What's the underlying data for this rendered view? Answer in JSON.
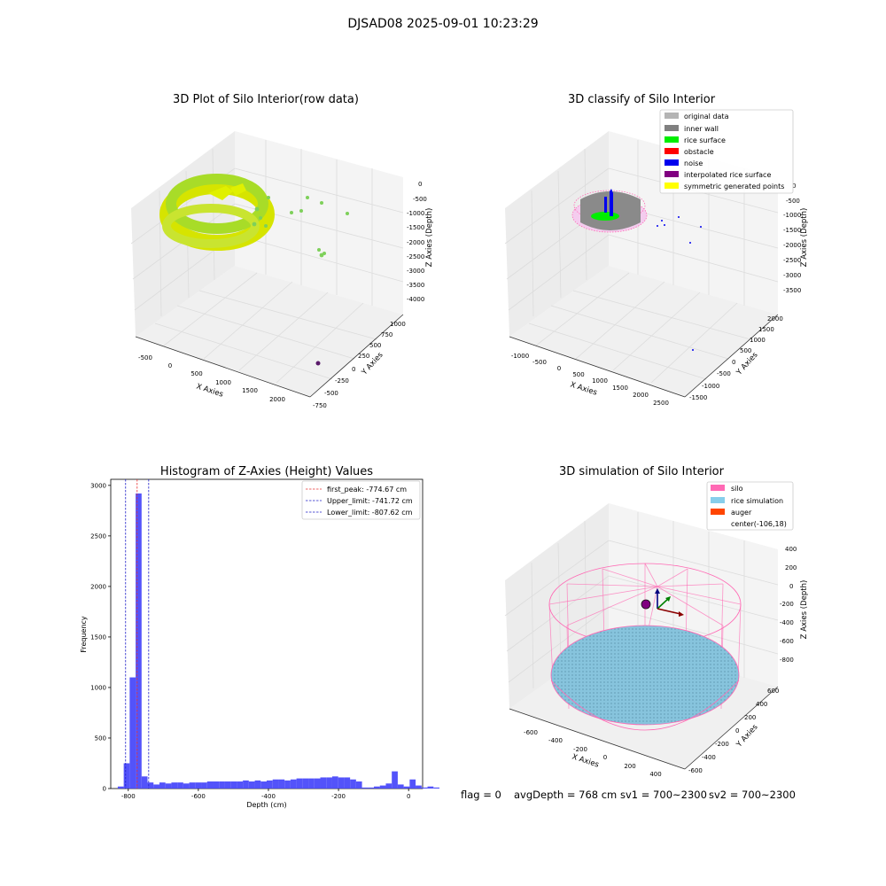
{
  "figure_title": "DJSAD08 2025-09-01 10:23:29",
  "status": {
    "flag": "flag = 0",
    "avg_depth": "avgDepth = 768 cm",
    "sv1": "sv1 = 700~2300",
    "sv2": "sv2 = 700~2300"
  },
  "colors": {
    "hist_bar": "#4a4afa",
    "first_peak": "#e83232",
    "limits": "#2020c8",
    "grid": "#e0e0e0",
    "pane": "#f2f2f2"
  },
  "chart_data": [
    {
      "id": "raw",
      "type": "scatter",
      "title": "3D Plot of Silo Interior(row data)",
      "xlabel": "X Axies",
      "ylabel": "Y Axies",
      "zlabel": "Z Axies (Depth)",
      "x_ticks": [
        "-500",
        "0",
        "500",
        "1000",
        "1500",
        "2000"
      ],
      "y_ticks": [
        "-750",
        "-500",
        "-250",
        "0",
        "250",
        "500",
        "750",
        "1000"
      ],
      "z_ticks": [
        "-4000",
        "-3500",
        "-3000",
        "-2500",
        "-2000",
        "-1500",
        "-1000",
        "-500",
        "0"
      ],
      "point_groups": [
        {
          "name": "cylinder wall",
          "color": "#a8dc28",
          "x_range": [
            -550,
            300
          ],
          "y_range": [
            -300,
            600
          ],
          "z_range": [
            -1500,
            -500
          ]
        },
        {
          "name": "scattered points",
          "color": "#7ed05a",
          "points": [
            [
              700,
              300,
              -700
            ],
            [
              900,
              200,
              -1000
            ],
            [
              1100,
              350,
              -1200
            ],
            [
              600,
              400,
              -1150
            ],
            [
              1300,
              100,
              -2000
            ],
            [
              1350,
              120,
              -2150
            ]
          ]
        },
        {
          "name": "outlier",
          "color": "#5a1a6a",
          "points": [
            [
              2000,
              -700,
              -4000
            ]
          ]
        }
      ]
    },
    {
      "id": "classify",
      "type": "scatter",
      "title": "3D classify of Silo Interior",
      "xlabel": "X Axies",
      "ylabel": "Y Axies",
      "zlabel": "Z Axies (Depth)",
      "x_ticks": [
        "-1000",
        "-500",
        "0",
        "500",
        "1000",
        "1500",
        "2000",
        "2500"
      ],
      "y_ticks": [
        "-1500",
        "-1000",
        "-500",
        "0",
        "500",
        "1000",
        "1500",
        "2000"
      ],
      "z_ticks": [
        "-3500",
        "-3000",
        "-2500",
        "-2000",
        "-1500",
        "-1000",
        "-500",
        "0"
      ],
      "legend": [
        {
          "label": "original data",
          "color": "#b4b4b4"
        },
        {
          "label": "inner wall",
          "color": "#808080"
        },
        {
          "label": "rice surface",
          "color": "#00ee00"
        },
        {
          "label": "obstacle",
          "color": "#ff0000"
        },
        {
          "label": "noise",
          "color": "#0000ee"
        },
        {
          "label": "interpolated rice surface",
          "color": "#800080"
        },
        {
          "label": "symmetric generated points",
          "color": "#ffff00"
        }
      ]
    },
    {
      "id": "hist",
      "type": "bar",
      "title": "Histogram of Z-Axies (Height) Values",
      "xlabel": "Depth (cm)",
      "ylabel": "Frequency",
      "xlim": [
        -850,
        40
      ],
      "ylim": [
        0,
        3060
      ],
      "x_ticks": [
        -800,
        -600,
        -400,
        -200,
        0
      ],
      "y_ticks": [
        0,
        500,
        1000,
        1500,
        2000,
        2500,
        3000
      ],
      "bin_width": 17,
      "bin_start": -830,
      "values": [
        20,
        250,
        1100,
        2920,
        120,
        60,
        40,
        60,
        50,
        60,
        60,
        50,
        60,
        60,
        60,
        70,
        70,
        70,
        70,
        70,
        70,
        80,
        70,
        80,
        70,
        80,
        90,
        90,
        80,
        90,
        100,
        100,
        100,
        100,
        110,
        110,
        120,
        110,
        110,
        90,
        70,
        10,
        10,
        20,
        30,
        50,
        170,
        40,
        20,
        90,
        30,
        10,
        20,
        10
      ],
      "lines": [
        {
          "label": "first_peak: -774.67 cm",
          "value": -774.67,
          "style": "first_peak"
        },
        {
          "label": "Upper_limit: -741.72 cm",
          "value": -741.72,
          "style": "limit"
        },
        {
          "label": "Lower_limit: -807.62 cm",
          "value": -807.62,
          "style": "limit"
        }
      ]
    },
    {
      "id": "sim",
      "type": "scatter",
      "title": "3D simulation of Silo Interior",
      "xlabel": "X Axies",
      "ylabel": "Y Axies",
      "zlabel": "Z Axies (Depth)",
      "x_ticks": [
        "-600",
        "-400",
        "-200",
        "0",
        "200",
        "400"
      ],
      "y_ticks": [
        "-600",
        "-400",
        "-200",
        "0",
        "200",
        "400",
        "600"
      ],
      "z_ticks": [
        "-800",
        "-600",
        "-400",
        "-200",
        "0",
        "200",
        "400"
      ],
      "legend": [
        {
          "label": "silo",
          "color": "#ff69b4"
        },
        {
          "label": "rice simulation",
          "color": "#87ceeb"
        },
        {
          "label": "auger",
          "color": "#ff4500"
        },
        {
          "label": "center(-106,18)",
          "color": ""
        }
      ]
    }
  ]
}
